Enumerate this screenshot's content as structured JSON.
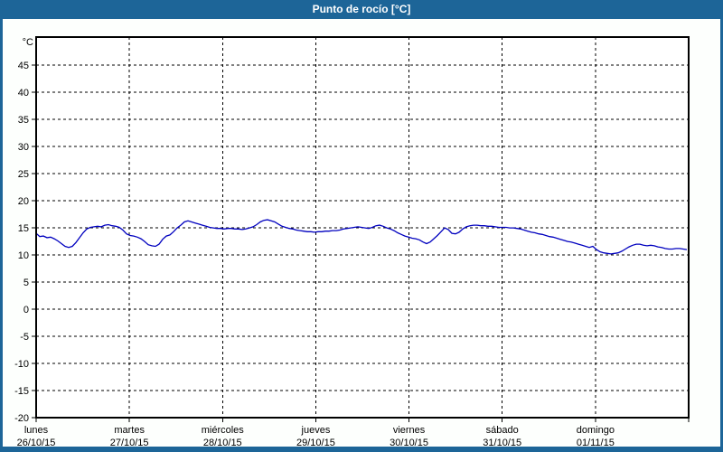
{
  "window": {
    "title": "Punto de rocío [°C]"
  },
  "colors": {
    "frame_and_titlebar": "#1d6598",
    "title_text": "#ffffff",
    "chart_background": "#fdfffd",
    "plot_background": "#ffffff",
    "plot_border": "#000000",
    "grid": "#000000",
    "line": "#0000bf",
    "label_text": "#000000"
  },
  "chart_data": {
    "type": "line",
    "title": "Punto de rocío [°C]",
    "y_unit_label": "°C",
    "ylim": [
      -20,
      50.2
    ],
    "y_ticks": [
      45,
      40,
      35,
      30,
      25,
      20,
      15,
      10,
      5,
      0,
      -5,
      -10,
      -15,
      -20
    ],
    "grid": "dashed",
    "legend_position": "none",
    "x_categories": [
      {
        "day": "lunes",
        "date": "26/10/15"
      },
      {
        "day": "martes",
        "date": "27/10/15"
      },
      {
        "day": "miércoles",
        "date": "28/10/15"
      },
      {
        "day": "jueves",
        "date": "29/10/15"
      },
      {
        "day": "viernes",
        "date": "30/10/15"
      },
      {
        "day": "sábado",
        "date": "31/10/15"
      },
      {
        "day": "domingo",
        "date": "01/11/15"
      }
    ],
    "x_total_hours": 168,
    "series": [
      {
        "name": "Punto de rocío",
        "color": "#0000bf",
        "x_start_hour": 0,
        "x_step_hours": 0.9306,
        "values": [
          14.0,
          13.4,
          13.5,
          13.2,
          13.3,
          13.0,
          12.6,
          12.1,
          11.6,
          11.4,
          11.6,
          12.3,
          13.2,
          14.1,
          14.8,
          15.1,
          15.2,
          15.3,
          15.2,
          15.5,
          15.6,
          15.4,
          15.3,
          15.1,
          14.6,
          13.9,
          13.6,
          13.5,
          13.3,
          13.0,
          12.5,
          11.9,
          11.7,
          11.6,
          12.0,
          12.9,
          13.5,
          13.7,
          14.3,
          15.0,
          15.5,
          16.1,
          16.3,
          16.1,
          15.9,
          15.7,
          15.5,
          15.3,
          15.1,
          15.0,
          14.9,
          14.9,
          14.8,
          14.9,
          14.9,
          14.8,
          14.8,
          14.7,
          14.8,
          15.0,
          15.2,
          15.6,
          16.1,
          16.4,
          16.5,
          16.3,
          16.1,
          15.7,
          15.3,
          15.1,
          14.9,
          14.8,
          14.6,
          14.5,
          14.4,
          14.3,
          14.3,
          14.2,
          14.3,
          14.3,
          14.4,
          14.4,
          14.5,
          14.5,
          14.6,
          14.8,
          14.9,
          15.0,
          15.1,
          15.2,
          15.1,
          15.0,
          14.9,
          15.1,
          15.4,
          15.5,
          15.3,
          15.0,
          14.8,
          14.5,
          14.1,
          13.8,
          13.5,
          13.3,
          13.1,
          13.0,
          12.8,
          12.4,
          12.1,
          12.4,
          13.0,
          13.6,
          14.3,
          15.0,
          14.7,
          14.0,
          13.9,
          14.2,
          14.8,
          15.2,
          15.4,
          15.5,
          15.5,
          15.4,
          15.4,
          15.3,
          15.3,
          15.2,
          15.1,
          15.1,
          15.1,
          15.0,
          15.0,
          14.9,
          14.8,
          14.6,
          14.4,
          14.2,
          14.1,
          13.9,
          13.8,
          13.6,
          13.4,
          13.3,
          13.1,
          12.9,
          12.7,
          12.5,
          12.4,
          12.2,
          12.0,
          11.8,
          11.6,
          11.4,
          11.6,
          11.0,
          10.6,
          10.4,
          10.3,
          10.2,
          10.3,
          10.4,
          10.7,
          11.1,
          11.5,
          11.8,
          12.0,
          12.0,
          11.8,
          11.7,
          11.8,
          11.7,
          11.5,
          11.4,
          11.2,
          11.1,
          11.1,
          11.2,
          11.2,
          11.1,
          11.0
        ]
      }
    ]
  }
}
